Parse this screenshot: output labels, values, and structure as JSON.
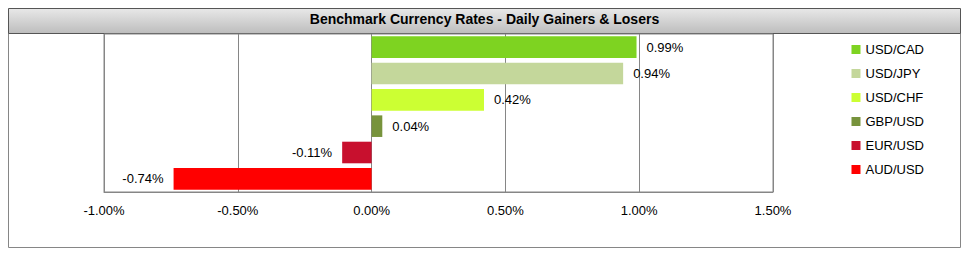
{
  "chart_data": {
    "type": "bar",
    "title": "Benchmark Currency Rates - Daily Gainers & Losers",
    "orientation": "horizontal",
    "categories": [
      "USD/CAD",
      "USD/JPY",
      "USD/CHF",
      "GBP/USD",
      "EUR/USD",
      "AUD/USD"
    ],
    "values": [
      0.99,
      0.94,
      0.42,
      0.04,
      -0.11,
      -0.74
    ],
    "value_labels": [
      "0.99%",
      "0.94%",
      "0.42%",
      "0.04%",
      "-0.11%",
      "-0.74%"
    ],
    "colors": [
      "#7ED321",
      "#C4D79B",
      "#CCFF33",
      "#77933C",
      "#C8102E",
      "#FF0000"
    ],
    "xlim": [
      -1,
      1.5
    ],
    "xticks": [
      {
        "value": -1,
        "label": "-1.00%"
      },
      {
        "value": -0.5,
        "label": "-0.50%"
      },
      {
        "value": 0,
        "label": "0.00%"
      },
      {
        "value": 0.5,
        "label": "0.50%"
      },
      {
        "value": 1,
        "label": "1.00%"
      },
      {
        "value": 1.5,
        "label": "1.50%"
      }
    ],
    "grid": true,
    "legend": "right",
    "data_labels": true,
    "tick_labels": "x"
  }
}
